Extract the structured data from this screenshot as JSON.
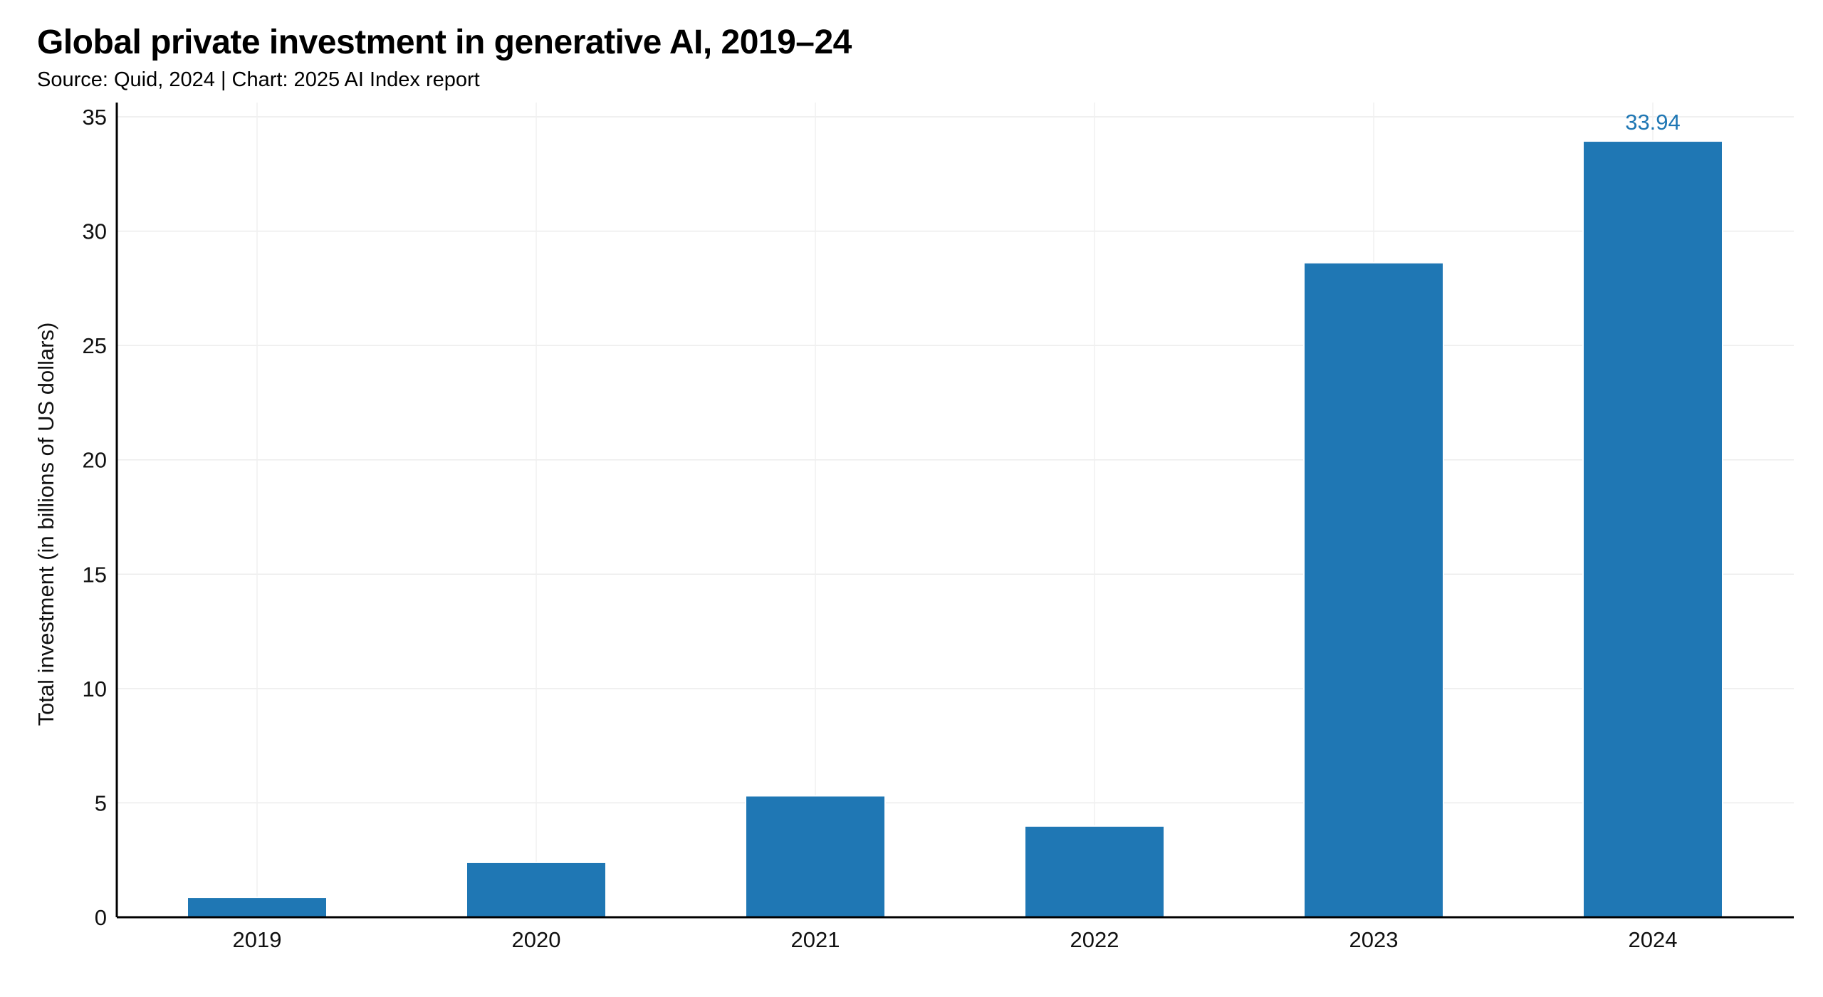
{
  "chart_data": {
    "type": "bar",
    "title": "Global private investment in generative AI, 2019–24",
    "subtitle": "Source: Quid, 2024 | Chart: 2025 AI Index report",
    "xlabel": "",
    "ylabel": "Total investment (in billions of US dollars)",
    "categories": [
      "2019",
      "2020",
      "2021",
      "2022",
      "2023",
      "2024"
    ],
    "values": [
      0.87,
      2.4,
      5.31,
      3.99,
      28.62,
      33.94
    ],
    "data_labels": {
      "2024": "33.94"
    },
    "ylim": [
      0,
      35
    ],
    "yticks": [
      0,
      5,
      10,
      15,
      20,
      25,
      30,
      35
    ],
    "grid": true,
    "bar_color": "#1f77b4",
    "label_color": "#1f77b4"
  }
}
